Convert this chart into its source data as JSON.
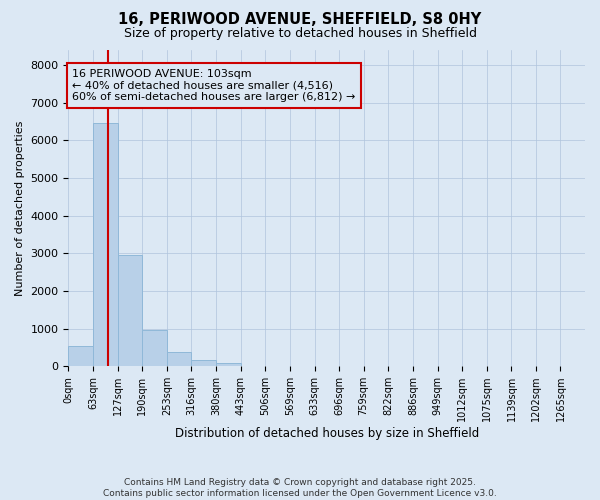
{
  "title": "16, PERIWOOD AVENUE, SHEFFIELD, S8 0HY",
  "subtitle": "Size of property relative to detached houses in Sheffield",
  "xlabel": "Distribution of detached houses by size in Sheffield",
  "ylabel": "Number of detached properties",
  "bar_color": "#b8d0e8",
  "bar_edge_color": "#90b8d8",
  "vline_color": "#cc0000",
  "vline_x": 103,
  "annotation_line1": "16 PERIWOOD AVENUE: 103sqm",
  "annotation_line2": "← 40% of detached houses are smaller (4,516)",
  "annotation_line3": "60% of semi-detached houses are larger (6,812) →",
  "annotation_box_color": "#cc0000",
  "bin_edges": [
    0,
    63,
    127,
    190,
    253,
    316,
    380,
    443,
    506,
    569,
    633,
    696,
    759,
    822,
    886,
    949,
    1012,
    1075,
    1139,
    1202,
    1265,
    1328
  ],
  "bar_heights": [
    550,
    6450,
    2950,
    975,
    375,
    175,
    75,
    10,
    0,
    0,
    0,
    0,
    0,
    0,
    0,
    0,
    0,
    0,
    0,
    0,
    0
  ],
  "ylim": [
    0,
    8400
  ],
  "yticks": [
    0,
    1000,
    2000,
    3000,
    4000,
    5000,
    6000,
    7000,
    8000
  ],
  "footer_text": "Contains HM Land Registry data © Crown copyright and database right 2025.\nContains public sector information licensed under the Open Government Licence v3.0.",
  "background_color": "#dce8f4",
  "plot_bg_color": "#dce8f4"
}
